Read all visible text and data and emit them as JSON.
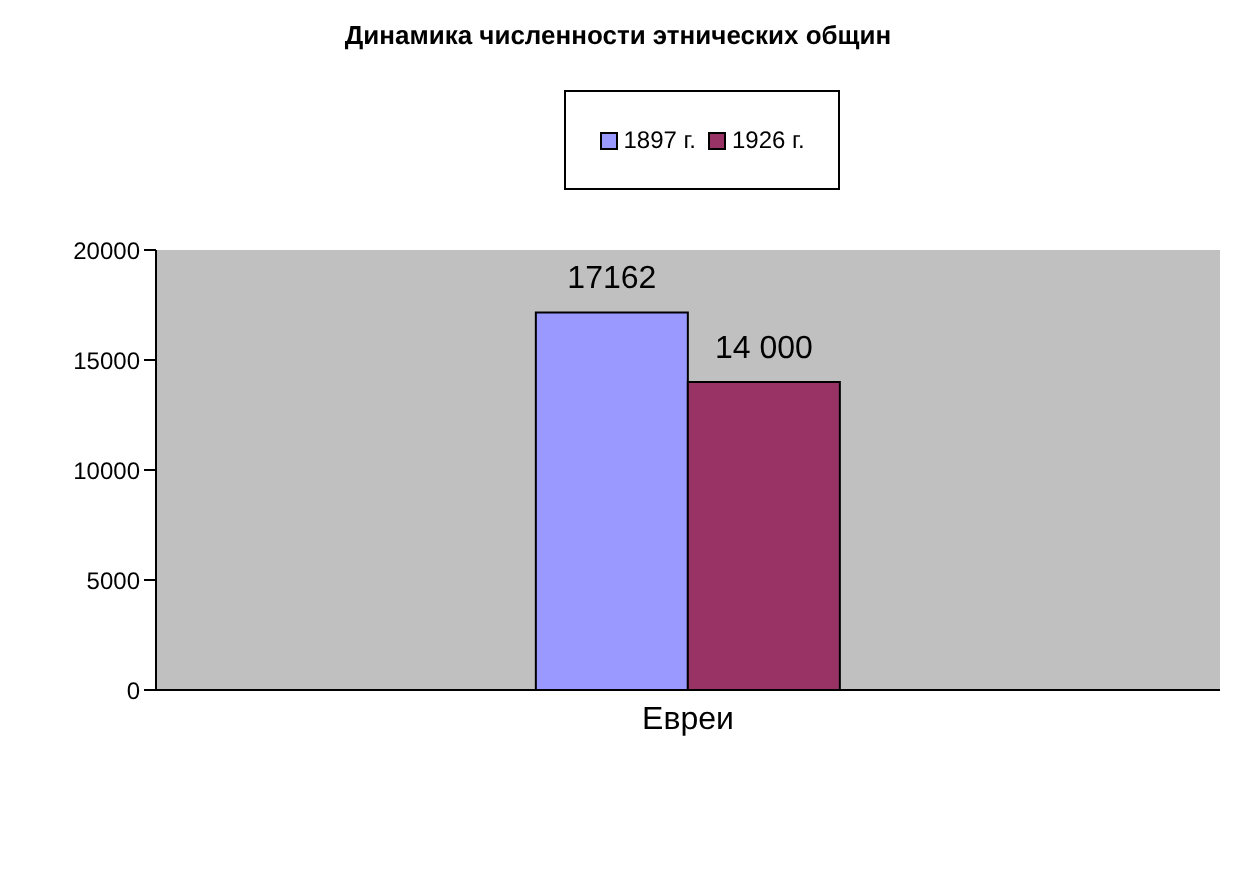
{
  "chart_data": {
    "type": "bar",
    "title": "Динамика численности этнических общин",
    "categories": [
      "Евреи"
    ],
    "series": [
      {
        "name": "1897 г.",
        "color": "#9999ff",
        "values": [
          17162
        ],
        "value_labels": [
          "17162"
        ]
      },
      {
        "name": "1926 г.",
        "color": "#993366",
        "values": [
          14000
        ],
        "value_labels": [
          "14 000"
        ]
      }
    ],
    "ylim": [
      0,
      20000
    ],
    "yticks": [
      0,
      5000,
      10000,
      15000,
      20000
    ],
    "grid": false,
    "legend": "top"
  }
}
